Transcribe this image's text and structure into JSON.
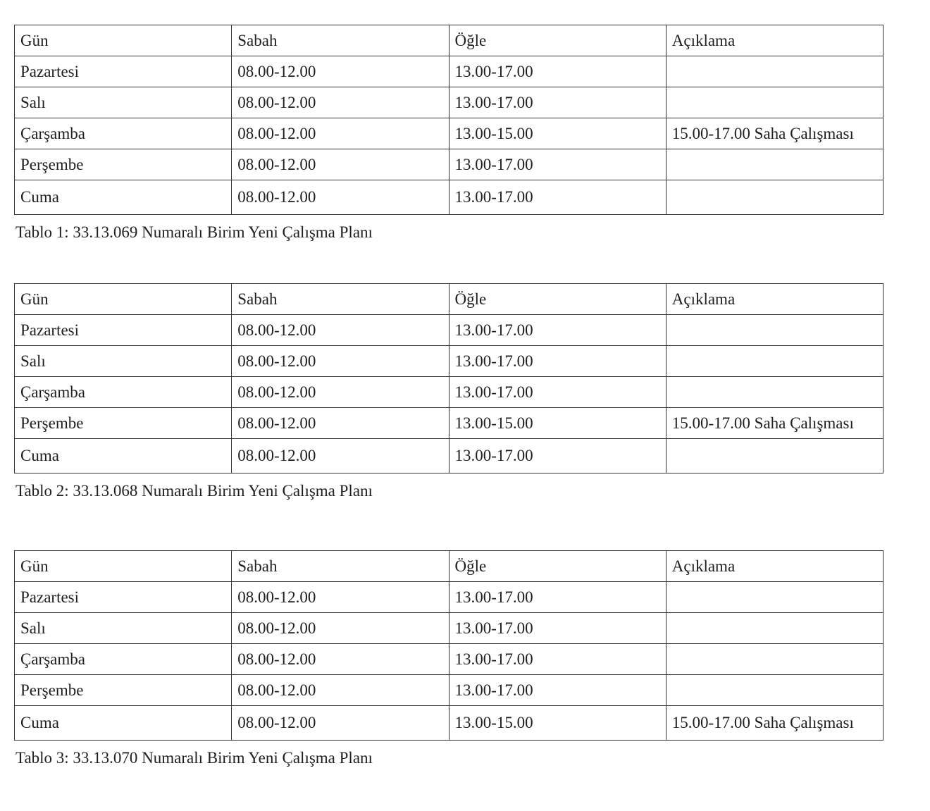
{
  "headers": [
    "Gün",
    "Sabah",
    "Öğle",
    "Açıklama"
  ],
  "tables": [
    {
      "caption": "Tablo 1: 33.13.069 Numaralı Birim Yeni Çalışma Planı",
      "rows": [
        [
          "Pazartesi",
          "08.00-12.00",
          "13.00-17.00",
          ""
        ],
        [
          "Salı",
          "08.00-12.00",
          "13.00-17.00",
          ""
        ],
        [
          "Çarşamba",
          "08.00-12.00",
          "13.00-15.00",
          "15.00-17.00 Saha Çalışması"
        ],
        [
          "Perşembe",
          "08.00-12.00",
          "13.00-17.00",
          ""
        ],
        [
          "Cuma",
          "08.00-12.00",
          "13.00-17.00",
          ""
        ]
      ]
    },
    {
      "caption": "Tablo 2: 33.13.068 Numaralı Birim Yeni Çalışma Planı",
      "rows": [
        [
          "Pazartesi",
          "08.00-12.00",
          "13.00-17.00",
          ""
        ],
        [
          "Salı",
          "08.00-12.00",
          "13.00-17.00",
          ""
        ],
        [
          "Çarşamba",
          "08.00-12.00",
          "13.00-17.00",
          ""
        ],
        [
          "Perşembe",
          "08.00-12.00",
          "13.00-15.00",
          "15.00-17.00 Saha Çalışması"
        ],
        [
          "Cuma",
          "08.00-12.00",
          "13.00-17.00",
          ""
        ]
      ]
    },
    {
      "caption": "Tablo 3: 33.13.070 Numaralı Birim Yeni Çalışma Planı",
      "rows": [
        [
          "Pazartesi",
          "08.00-12.00",
          "13.00-17.00",
          ""
        ],
        [
          "Salı",
          "08.00-12.00",
          "13.00-17.00",
          ""
        ],
        [
          "Çarşamba",
          "08.00-12.00",
          "13.00-17.00",
          ""
        ],
        [
          "Perşembe",
          "08.00-12.00",
          "13.00-17.00",
          ""
        ],
        [
          "Cuma",
          "08.00-12.00",
          "13.00-15.00",
          "15.00-17.00 Saha Çalışması"
        ]
      ]
    }
  ]
}
